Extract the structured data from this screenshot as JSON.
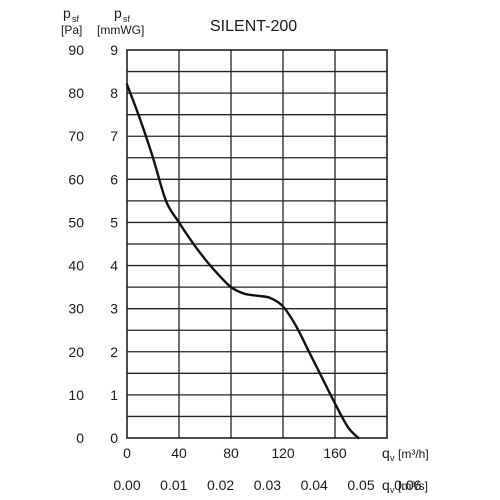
{
  "chart_data": {
    "type": "line",
    "title": "SILENT-200",
    "axis_left_outer": {
      "symbol": "p",
      "subscript": "sf",
      "unit": "[Pa]",
      "ticks": [
        "0",
        "10",
        "20",
        "30",
        "40",
        "50",
        "60",
        "70",
        "80",
        "90"
      ],
      "range": [
        0,
        90
      ]
    },
    "axis_left_inner": {
      "symbol": "p",
      "subscript": "sf",
      "unit": "[mmWG]",
      "ticks": [
        "0",
        "1",
        "2",
        "3",
        "4",
        "5",
        "6",
        "7",
        "8",
        "9"
      ],
      "range": [
        0,
        9
      ]
    },
    "axis_bottom": {
      "symbol": "q",
      "subscript": "v",
      "unit": "[m³/h]",
      "ticks": [
        "0",
        "40",
        "80",
        "120",
        "160"
      ],
      "range": [
        0,
        200
      ]
    },
    "axis_bottom_secondary": {
      "symbol": "q",
      "subscript": "v",
      "unit": "[m³/s]",
      "ticks": [
        "0.00",
        "0.01",
        "0.02",
        "0.03",
        "0.04",
        "0.05",
        "0.06"
      ]
    },
    "grid": true,
    "series": [
      {
        "x": [
          0,
          10,
          20,
          30,
          40,
          50,
          60,
          70,
          80,
          90,
          100,
          110,
          120,
          130,
          140,
          150,
          160,
          170,
          178
        ],
        "y": [
          82,
          74,
          65,
          55,
          50,
          45.5,
          41.5,
          38,
          35,
          33.5,
          33,
          32.5,
          30.5,
          26,
          20,
          14,
          8,
          2.5,
          0
        ]
      }
    ]
  }
}
